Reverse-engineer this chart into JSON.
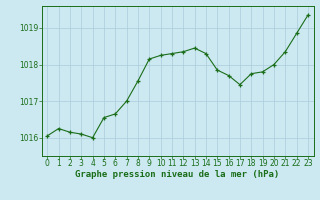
{
  "x": [
    0,
    1,
    2,
    3,
    4,
    5,
    6,
    7,
    8,
    9,
    10,
    11,
    12,
    13,
    14,
    15,
    16,
    17,
    18,
    19,
    20,
    21,
    22,
    23
  ],
  "y": [
    1016.05,
    1016.25,
    1016.15,
    1016.1,
    1016.0,
    1016.55,
    1016.65,
    1017.0,
    1017.55,
    1018.15,
    1018.25,
    1018.3,
    1018.35,
    1018.45,
    1018.3,
    1017.85,
    1017.7,
    1017.45,
    1017.75,
    1017.8,
    1018.0,
    1018.35,
    1018.85,
    1019.35
  ],
  "line_color": "#1a6e1a",
  "marker_color": "#1a6e1a",
  "bg_color": "#cce8f0",
  "grid_color": "#aaccdd",
  "axis_color": "#1a6e1a",
  "tick_label_color": "#1a6e1a",
  "xlabel": "Graphe pression niveau de la mer (hPa)",
  "xlabel_color": "#1a6e1a",
  "ylim": [
    1015.5,
    1019.6
  ],
  "yticks": [
    1016,
    1017,
    1018,
    1019
  ],
  "xticks": [
    0,
    1,
    2,
    3,
    4,
    5,
    6,
    7,
    8,
    9,
    10,
    11,
    12,
    13,
    14,
    15,
    16,
    17,
    18,
    19,
    20,
    21,
    22,
    23
  ],
  "tick_fontsize": 5.5,
  "xlabel_fontsize": 6.5
}
